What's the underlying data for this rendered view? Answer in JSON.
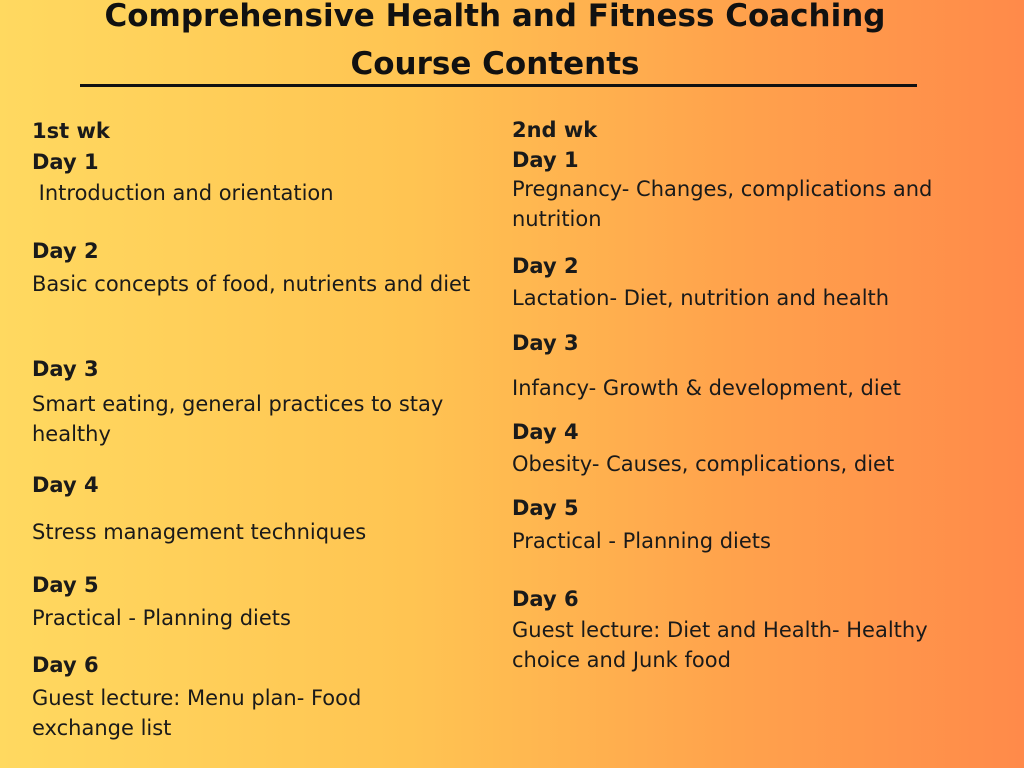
{
  "title_line1": "Comprehensive Health and Fitness Coaching",
  "title_line2": "Course Contents",
  "week1": {
    "label": "1st wk",
    "days": [
      {
        "day": "Day 1",
        "topic": " Introduction and orientation"
      },
      {
        "day": "Day 2",
        "topic": "Basic concepts of food, nutrients and diet"
      },
      {
        "day": "Day 3",
        "topic": "Smart eating, general practices to stay healthy"
      },
      {
        "day": "Day 4",
        "topic": "Stress management techniques"
      },
      {
        "day": "Day 5",
        "topic": "Practical - Planning diets"
      },
      {
        "day": "Day 6",
        "topic": "Guest lecture: Menu plan- Food exchange list"
      }
    ]
  },
  "week2": {
    "label": "2nd wk",
    "days": [
      {
        "day": "Day 1",
        "topic": "Pregnancy- Changes, complications and nutrition"
      },
      {
        "day": "Day 2",
        "topic": "Lactation- Diet, nutrition and health"
      },
      {
        "day": "Day 3",
        "topic": "Infancy- Growth & development, diet"
      },
      {
        "day": "Day 4",
        "topic": "Obesity- Causes, complications, diet"
      },
      {
        "day": "Day 5",
        "topic": "Practical - Planning diets"
      },
      {
        "day": "Day 6",
        "topic": "Guest lecture: Diet and Health- Healthy choice and Junk food"
      }
    ]
  }
}
